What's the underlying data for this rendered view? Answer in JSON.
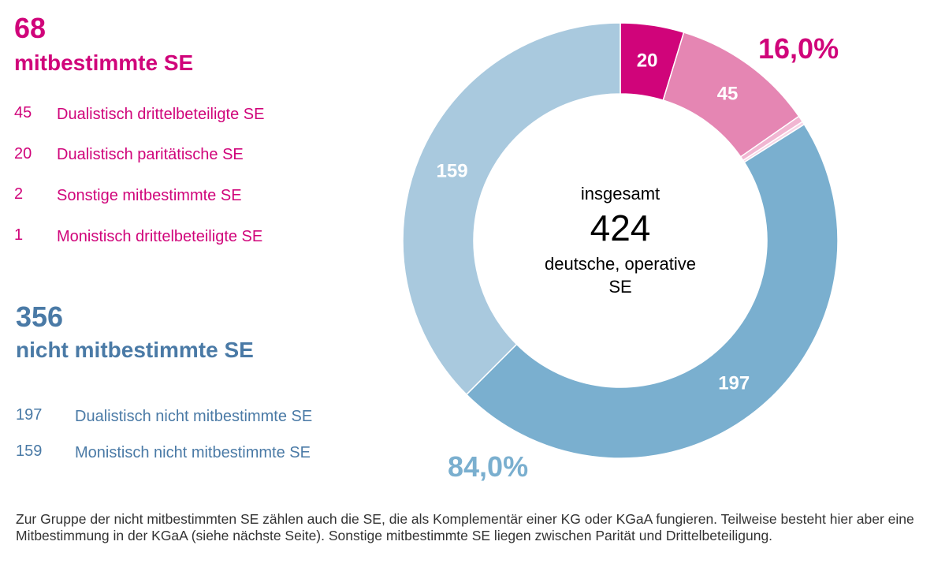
{
  "mitbestimmt": {
    "count": "68",
    "label": "mitbestimmte SE",
    "items": [
      {
        "value": "45",
        "label": "Dualistisch drittelbeteiligte SE"
      },
      {
        "value": "20",
        "label": "Dualistisch paritätische SE"
      },
      {
        "value": "2",
        "label": "Sonstige mitbestimmte SE"
      },
      {
        "value": "1",
        "label": "Monistisch drittelbeteiligte SE"
      }
    ]
  },
  "nicht_mitbestimmt": {
    "count": "356",
    "label": "nicht mitbestimmte SE",
    "items": [
      {
        "value": "197",
        "label": "Dualistisch nicht mitbestimmte SE"
      },
      {
        "value": "159",
        "label": "Monistisch nicht mitbestimmte SE"
      }
    ]
  },
  "center": {
    "line1": "insgesamt",
    "total": "424",
    "line2": "deutsche, operative",
    "line3": "SE"
  },
  "percent_pink": "16,0%",
  "percent_blue": "84,0%",
  "footnote": "Zur Gruppe der nicht mitbestimmten SE zählen auch die SE, die als Komplementär einer KG oder KGaA fungieren. Teilweise besteht hier aber eine Mitbestimmung in der KGaA (siehe nächste Seite). Sonstige mitbestimmte SE liegen zwischen Parität und Drittelbeteiligung.",
  "colors": {
    "pink_dark": "#d0047a",
    "pink_mid": "#e586b3",
    "pink_light": "#f1b6d2",
    "pink_lightest": "#f8d6e6",
    "blue_mid": "#7aafcf",
    "blue_light": "#a9c9de",
    "blue_text": "#4a7aa6"
  },
  "chart_data": {
    "type": "pie",
    "title": "insgesamt 424 deutsche, operative SE",
    "total": 424,
    "slices": [
      {
        "name": "Dualistisch paritätische SE",
        "value": 20,
        "label": "20",
        "color": "#d0047a"
      },
      {
        "name": "Dualistisch drittelbeteiligte SE",
        "value": 45,
        "label": "45",
        "color": "#e586b3"
      },
      {
        "name": "Sonstige mitbestimmte SE",
        "value": 2,
        "label": "",
        "color": "#f1b6d2"
      },
      {
        "name": "Monistisch drittelbeteiligte SE",
        "value": 1,
        "label": "",
        "color": "#f8d6e6"
      },
      {
        "name": "Dualistisch nicht mitbestimmte SE",
        "value": 197,
        "label": "197",
        "color": "#7aafcf"
      },
      {
        "name": "Monistisch nicht mitbestimmte SE",
        "value": 159,
        "label": "159",
        "color": "#a9c9de"
      }
    ],
    "groups": [
      {
        "name": "mitbestimmte SE",
        "value": 68,
        "percent": "16,0%"
      },
      {
        "name": "nicht mitbestimmte SE",
        "value": 356,
        "percent": "84,0%"
      }
    ]
  }
}
